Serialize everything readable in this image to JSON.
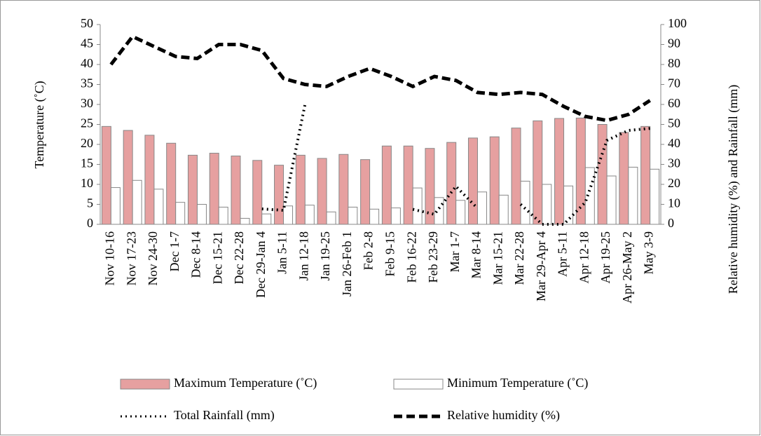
{
  "chart_data": {
    "type": "bar-line",
    "ylabel": "Temperature (˚C)",
    "y2label": "Relative humidity (%) and Rainfall (mm)",
    "categories": [
      "Nov 10-16",
      "Nov 17-23",
      "Nov 24-30",
      "Dec 1-7",
      "Dec 8-14",
      "Dec 15-21",
      "Dec 22-28",
      "Dec 29-Jan 4",
      "Jan 5-11",
      "Jan 12-18",
      "Jan 19-25",
      "Jan 26-Feb 1",
      "Feb 2-8",
      "Feb 9-15",
      "Feb 16-22",
      "Feb 23-29",
      "Mar 1-7",
      "Mar 8-14",
      "Mar 15-21",
      "Mar 22-28",
      "Mar 29-Apr 4",
      "Apr 5-11",
      "Apr 12-18",
      "Apr 19-25",
      "Apr 26-May 2",
      "May 3-9"
    ],
    "series": [
      {
        "name": "Maximum Temperature (˚C)",
        "type": "bar",
        "color": "#e6a0a0",
        "values": [
          24.5,
          23.5,
          22.3,
          20.3,
          17.3,
          17.8,
          17.1,
          16.0,
          14.8,
          17.3,
          16.5,
          17.5,
          16.2,
          19.6,
          19.6,
          19.0,
          20.5,
          21.6,
          21.9,
          24.1,
          25.9,
          26.5,
          26.6,
          25.0,
          23.0,
          24.5
        ]
      },
      {
        "name": "Minimum Temperature (˚C)",
        "type": "bar",
        "color": "#ffffff",
        "values": [
          9.2,
          11.0,
          8.8,
          5.5,
          5.0,
          4.3,
          1.5,
          2.6,
          4.6,
          4.8,
          3.1,
          4.3,
          3.8,
          4.1,
          9.1,
          6.7,
          6.0,
          8.1,
          7.3,
          10.8,
          10.0,
          9.6,
          14.2,
          12.1,
          14.3,
          13.8
        ]
      },
      {
        "name": "Total Rainfall (mm)",
        "type": "line",
        "style": "dotted",
        "axis": "y2",
        "color": "#000000",
        "values": [
          null,
          null,
          null,
          null,
          null,
          null,
          null,
          7.7,
          7,
          60,
          null,
          null,
          null,
          null,
          7.5,
          5,
          19,
          8,
          null,
          10,
          0,
          0,
          11,
          42,
          47,
          48
        ]
      },
      {
        "name": "Relative humidity (%)",
        "type": "line",
        "style": "dashed",
        "axis": "y2",
        "color": "#000000",
        "values": [
          80,
          94,
          89,
          84,
          83,
          90,
          90,
          87,
          73,
          70,
          69,
          74,
          78,
          74,
          69,
          74,
          72,
          66,
          65,
          66,
          65,
          59,
          54,
          52,
          55,
          62
        ]
      }
    ],
    "ylim": [
      0,
      50
    ],
    "yticks": [
      0,
      5,
      10,
      15,
      20,
      25,
      30,
      35,
      40,
      45,
      50
    ],
    "y2lim": [
      0,
      100
    ],
    "y2ticks": [
      0,
      10,
      20,
      30,
      40,
      50,
      60,
      70,
      80,
      90,
      100
    ]
  }
}
